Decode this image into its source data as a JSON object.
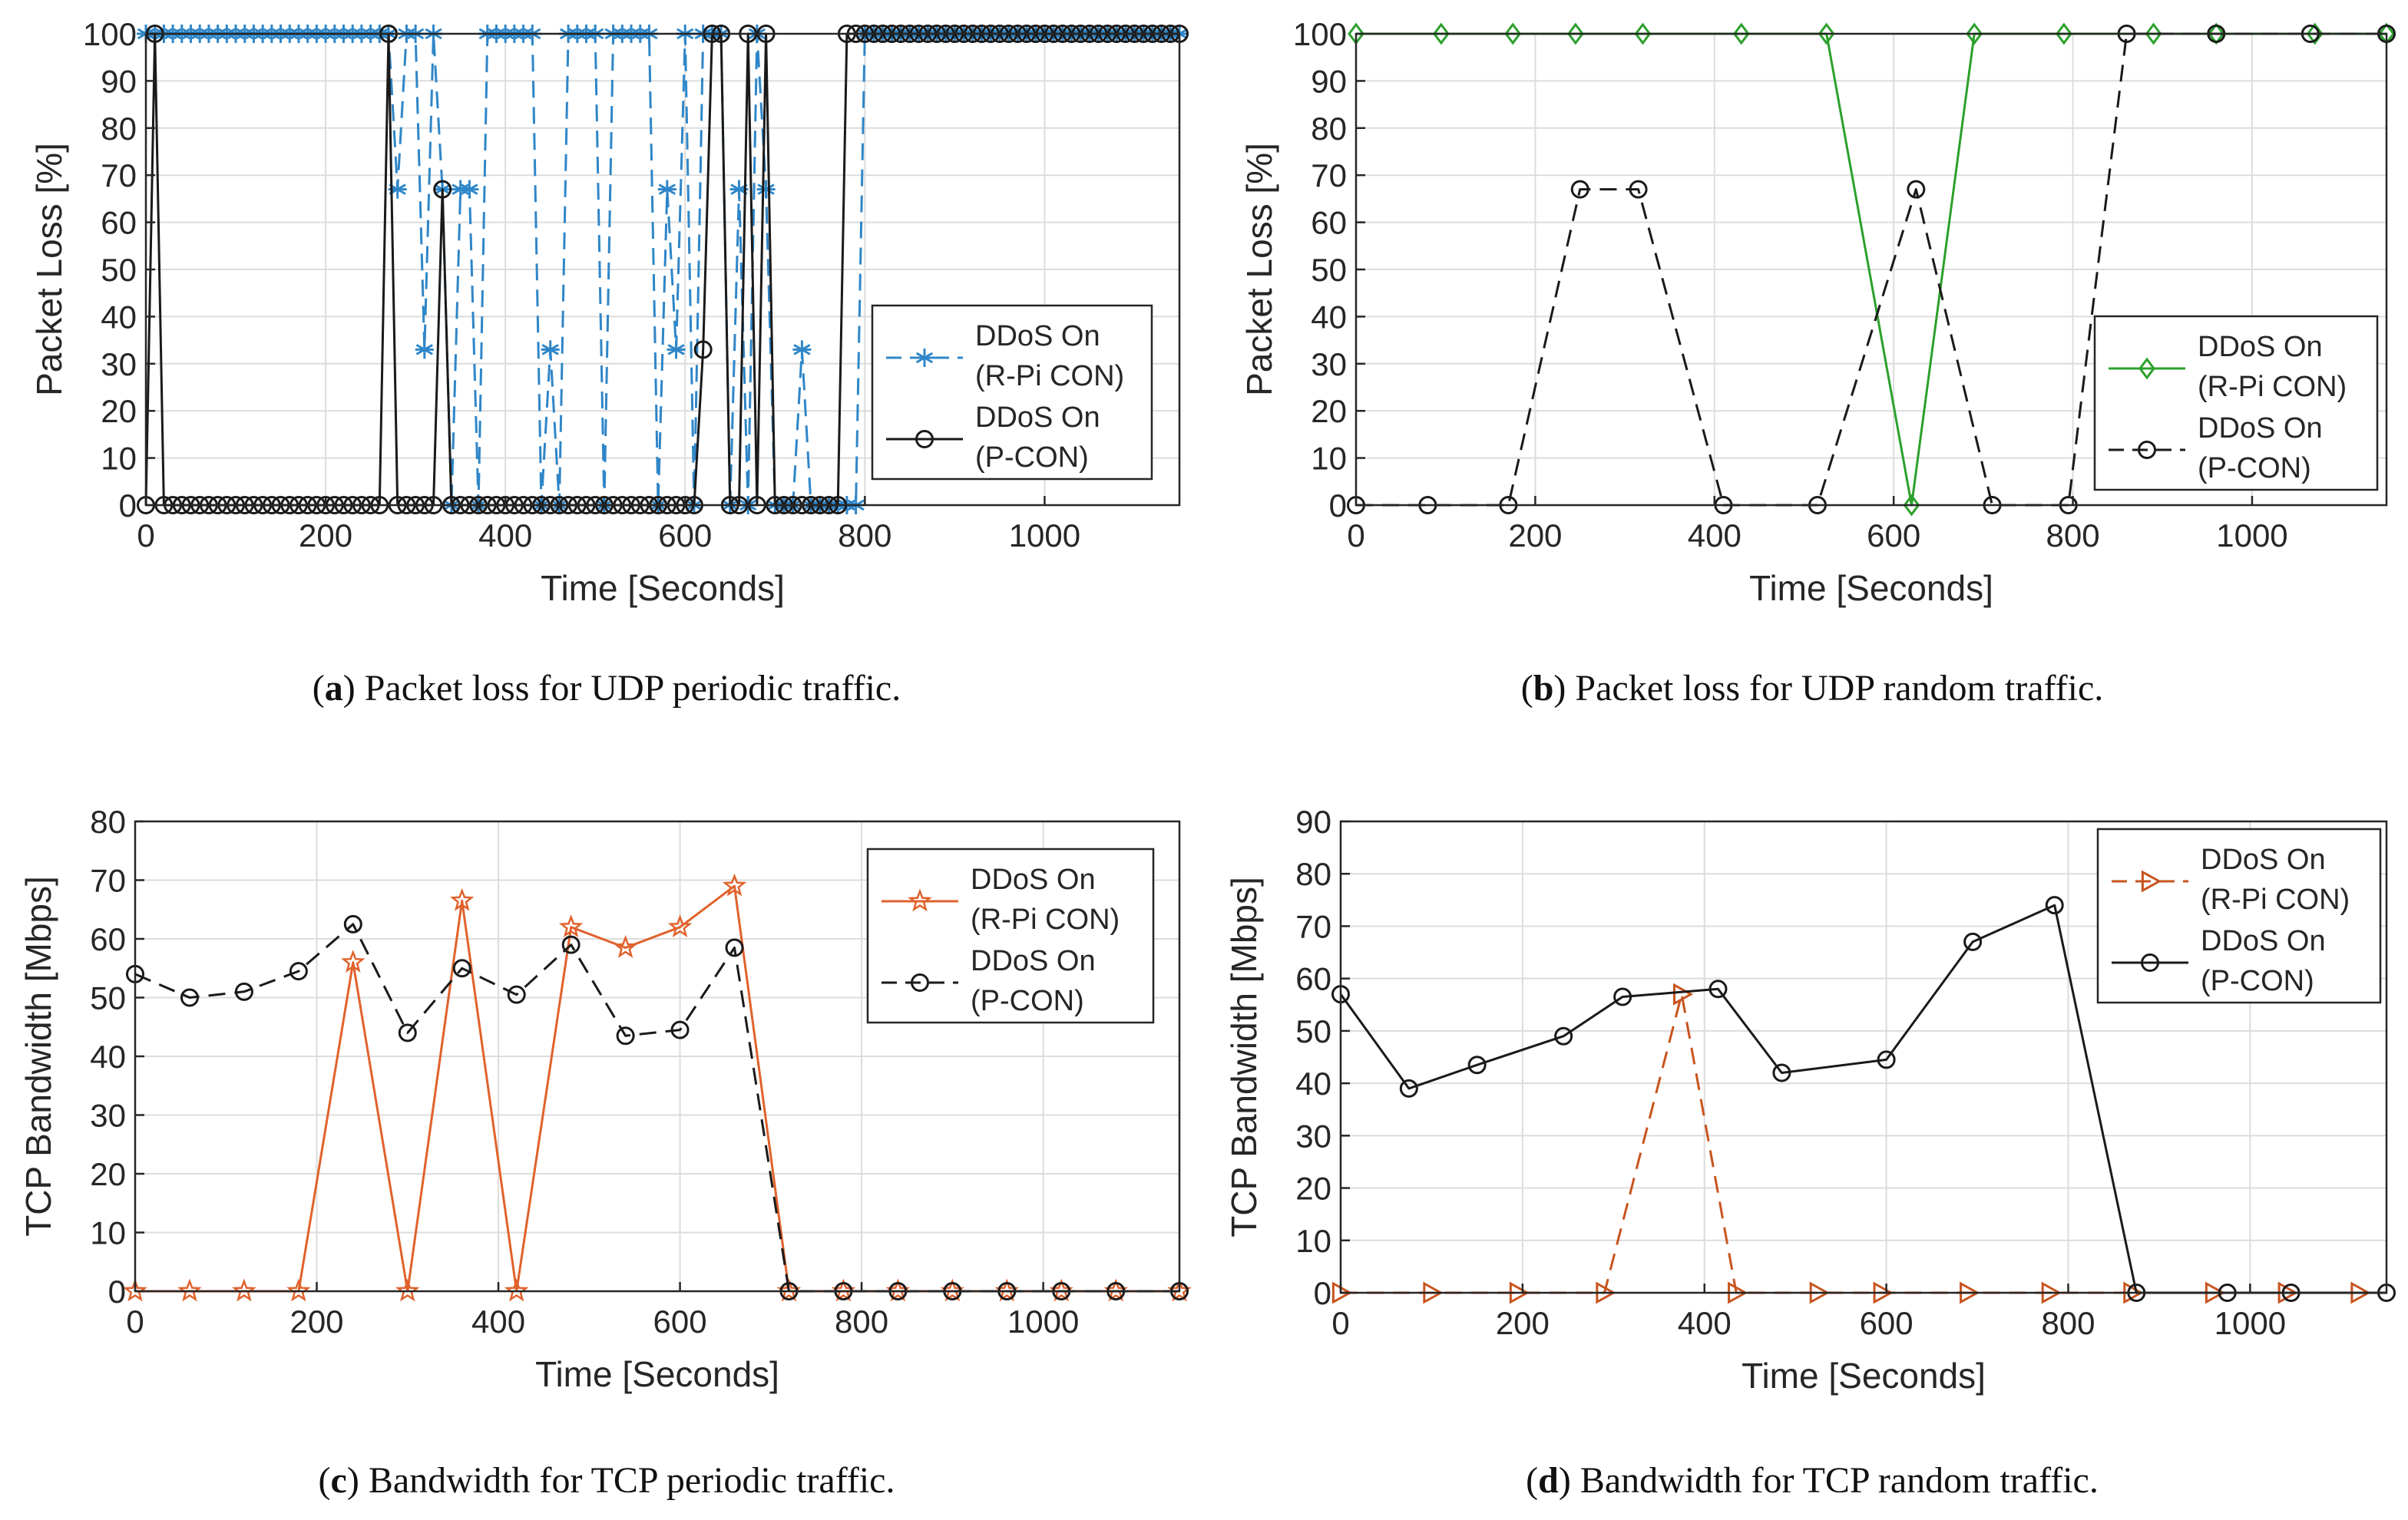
{
  "chart_data": [
    {
      "id": "a",
      "type": "line",
      "caption_label": "a",
      "caption_text": "Packet loss for UDP periodic traffic.",
      "xlabel": "Time [Seconds]",
      "ylabel": "Packet Loss [%]",
      "xlim": [
        0,
        1150
      ],
      "ylim": [
        0,
        100
      ],
      "xticks": [
        0,
        200,
        400,
        600,
        800,
        1000
      ],
      "yticks": [
        0,
        10,
        20,
        30,
        40,
        50,
        60,
        70,
        80,
        90,
        100
      ],
      "legend_position": "center-right",
      "series": [
        {
          "name": "DDoS On (R-Pi CON)",
          "legend_lines": [
            "DDoS On",
            "(R-Pi CON)"
          ],
          "color": "#2f86c8",
          "dash": "dashed",
          "marker": "asterisk",
          "x": [
            0,
            10,
            20,
            30,
            40,
            50,
            60,
            70,
            80,
            90,
            100,
            110,
            120,
            130,
            140,
            150,
            160,
            170,
            180,
            190,
            200,
            210,
            220,
            230,
            240,
            250,
            260,
            270,
            280,
            290,
            300,
            310,
            320,
            330,
            340,
            350,
            360,
            370,
            380,
            390,
            400,
            410,
            420,
            430,
            440,
            450,
            460,
            470,
            480,
            490,
            500,
            510,
            520,
            530,
            540,
            550,
            560,
            570,
            580,
            590,
            600,
            610,
            620,
            630,
            640,
            650,
            660,
            670,
            680,
            690,
            700,
            710,
            720,
            730,
            740,
            750,
            760,
            770,
            780,
            790,
            800,
            810,
            820,
            830,
            840,
            850,
            860,
            870,
            880,
            890,
            900,
            910,
            920,
            930,
            940,
            950,
            960,
            970,
            980,
            990,
            1000,
            1010,
            1020,
            1030,
            1040,
            1050,
            1060,
            1070,
            1080,
            1090,
            1100,
            1110,
            1120,
            1130,
            1140,
            1150
          ],
          "y": [
            100,
            100,
            100,
            100,
            100,
            100,
            100,
            100,
            100,
            100,
            100,
            100,
            100,
            100,
            100,
            100,
            100,
            100,
            100,
            100,
            100,
            100,
            100,
            100,
            100,
            100,
            100,
            100,
            67,
            100,
            100,
            33,
            100,
            67,
            0,
            67,
            67,
            0,
            100,
            100,
            100,
            100,
            100,
            100,
            0,
            33,
            0,
            100,
            100,
            100,
            100,
            0,
            100,
            100,
            100,
            100,
            100,
            0,
            67,
            33,
            100,
            0,
            100,
            100,
            100,
            0,
            67,
            0,
            100,
            67,
            0,
            0,
            0,
            33,
            0,
            0,
            0,
            0,
            0,
            0,
            100,
            100,
            100,
            100,
            100,
            100,
            100,
            100,
            100,
            100,
            100,
            100,
            100,
            100,
            100,
            100,
            100,
            100,
            100,
            100,
            100,
            100,
            100,
            100,
            100,
            100,
            100,
            100,
            100,
            100,
            100,
            100,
            100,
            100,
            100,
            100
          ]
        },
        {
          "name": "DDoS On (P-CON)",
          "legend_lines": [
            "DDoS On",
            "(P-CON)"
          ],
          "color": "#1a1a1a",
          "dash": "solid",
          "marker": "circle",
          "x": [
            0,
            10,
            20,
            30,
            40,
            50,
            60,
            70,
            80,
            90,
            100,
            110,
            120,
            130,
            140,
            150,
            160,
            170,
            180,
            190,
            200,
            210,
            220,
            230,
            240,
            250,
            260,
            270,
            280,
            290,
            300,
            310,
            320,
            330,
            340,
            350,
            360,
            370,
            380,
            390,
            400,
            410,
            420,
            430,
            440,
            450,
            460,
            470,
            480,
            490,
            500,
            510,
            520,
            530,
            540,
            550,
            560,
            570,
            580,
            590,
            600,
            610,
            620,
            630,
            640,
            650,
            660,
            670,
            680,
            690,
            700,
            710,
            720,
            730,
            740,
            750,
            760,
            770,
            780,
            790,
            800,
            810,
            820,
            830,
            840,
            850,
            860,
            870,
            880,
            890,
            900,
            910,
            920,
            930,
            940,
            950,
            960,
            970,
            980,
            990,
            1000,
            1010,
            1020,
            1030,
            1040,
            1050,
            1060,
            1070,
            1080,
            1090,
            1100,
            1110,
            1120,
            1130,
            1140,
            1150
          ],
          "y": [
            0,
            100,
            0,
            0,
            0,
            0,
            0,
            0,
            0,
            0,
            0,
            0,
            0,
            0,
            0,
            0,
            0,
            0,
            0,
            0,
            0,
            0,
            0,
            0,
            0,
            0,
            0,
            100,
            0,
            0,
            0,
            0,
            0,
            67,
            0,
            0,
            0,
            0,
            0,
            0,
            0,
            0,
            0,
            0,
            0,
            0,
            0,
            0,
            0,
            0,
            0,
            0,
            0,
            0,
            0,
            0,
            0,
            0,
            0,
            0,
            0,
            0,
            33,
            100,
            100,
            0,
            0,
            100,
            0,
            100,
            0,
            0,
            0,
            0,
            0,
            0,
            0,
            0,
            100,
            100,
            100,
            100,
            100,
            100,
            100,
            100,
            100,
            100,
            100,
            100,
            100,
            100,
            100,
            100,
            100,
            100,
            100,
            100,
            100,
            100,
            100,
            100,
            100,
            100,
            100,
            100,
            100,
            100,
            100,
            100,
            100,
            100,
            100,
            100,
            100,
            100
          ]
        }
      ]
    },
    {
      "id": "b",
      "type": "line",
      "caption_label": "b",
      "caption_text": "Packet loss for UDP random traffic.",
      "xlabel": "Time [Seconds]",
      "ylabel": "Packet Loss [%]",
      "xlim": [
        0,
        1150
      ],
      "ylim": [
        0,
        100
      ],
      "xticks": [
        0,
        200,
        400,
        600,
        800,
        1000
      ],
      "yticks": [
        0,
        10,
        20,
        30,
        40,
        50,
        60,
        70,
        80,
        90,
        100
      ],
      "legend_position": "center-right",
      "series": [
        {
          "name": "DDoS On (R-Pi CON)",
          "legend_lines": [
            "DDoS On",
            "(R-Pi CON)"
          ],
          "color": "#2ca02c",
          "dash": "solid",
          "marker": "diamond",
          "x": [
            0,
            95,
            175,
            245,
            320,
            430,
            525,
            620,
            690,
            790,
            890,
            960,
            1070,
            1150
          ],
          "y": [
            100,
            100,
            100,
            100,
            100,
            100,
            100,
            0,
            100,
            100,
            100,
            100,
            100,
            100
          ]
        },
        {
          "name": "DDoS On (P-CON)",
          "legend_lines": [
            "DDoS On",
            "(P-CON)"
          ],
          "color": "#1a1a1a",
          "dash": "dashed",
          "marker": "circle",
          "x": [
            0,
            80,
            170,
            250,
            315,
            410,
            515,
            625,
            710,
            795,
            860,
            960,
            1065,
            1150
          ],
          "y": [
            0,
            0,
            0,
            67,
            67,
            0,
            0,
            67,
            0,
            0,
            100,
            100,
            100,
            100
          ]
        }
      ]
    },
    {
      "id": "c",
      "type": "line",
      "caption_label": "c",
      "caption_text": "Bandwidth for TCP periodic traffic.",
      "xlabel": "Time [Seconds]",
      "ylabel": "TCP Bandwidth [Mbps]",
      "xlim": [
        0,
        1150
      ],
      "ylim": [
        0,
        80
      ],
      "xticks": [
        0,
        200,
        400,
        600,
        800,
        1000
      ],
      "yticks": [
        0,
        10,
        20,
        30,
        40,
        50,
        60,
        70,
        80
      ],
      "legend_position": "top-right",
      "series": [
        {
          "name": "DDoS On (R-Pi CON)",
          "legend_lines": [
            "DDoS On",
            "(R-Pi CON)"
          ],
          "color": "#e0622c",
          "dash": "solid",
          "marker": "pentagram",
          "x": [
            0,
            60,
            120,
            180,
            240,
            300,
            360,
            420,
            480,
            540,
            600,
            660,
            720,
            780,
            840,
            900,
            960,
            1020,
            1080,
            1150
          ],
          "y": [
            0,
            0,
            0,
            0,
            56,
            0,
            66.5,
            0,
            62,
            58.5,
            62,
            69,
            0,
            0,
            0,
            0,
            0,
            0,
            0,
            0
          ]
        },
        {
          "name": "DDoS On (P-CON)",
          "legend_lines": [
            "DDoS On",
            "(P-CON)"
          ],
          "color": "#1a1a1a",
          "dash": "dashed",
          "marker": "circle",
          "x": [
            0,
            60,
            120,
            180,
            240,
            300,
            360,
            420,
            480,
            540,
            600,
            660,
            720,
            780,
            840,
            900,
            960,
            1020,
            1080,
            1150
          ],
          "y": [
            54,
            50,
            51,
            54.5,
            62.5,
            44,
            55,
            50.5,
            59,
            43.5,
            44.5,
            58.5,
            0,
            0,
            0,
            0,
            0,
            0,
            0,
            0
          ]
        }
      ]
    },
    {
      "id": "d",
      "type": "line",
      "caption_label": "d",
      "caption_text": "Bandwidth for TCP random traffic.",
      "xlabel": "Time [Seconds]",
      "ylabel": "TCP Bandwidth [Mbps]",
      "xlim": [
        0,
        1150
      ],
      "ylim": [
        0,
        90
      ],
      "xticks": [
        0,
        200,
        400,
        600,
        800,
        1000
      ],
      "yticks": [
        0,
        10,
        20,
        30,
        40,
        50,
        60,
        70,
        80,
        90
      ],
      "legend_position": "top-right",
      "series": [
        {
          "name": "DDoS On (R-Pi CON)",
          "legend_lines": [
            "DDoS On",
            "(R-Pi CON)"
          ],
          "color": "#c8541e",
          "dash": "dashed",
          "marker": "triangle-right",
          "x": [
            0,
            100,
            195,
            290,
            375,
            435,
            525,
            595,
            690,
            780,
            870,
            960,
            1040,
            1120
          ],
          "y": [
            0,
            0,
            0,
            0,
            57,
            0,
            0,
            0,
            0,
            0,
            0,
            0,
            0,
            0
          ]
        },
        {
          "name": "DDoS On (P-CON)",
          "legend_lines": [
            "DDoS On",
            "(P-CON)"
          ],
          "color": "#1a1a1a",
          "dash": "solid",
          "marker": "circle",
          "x": [
            0,
            75,
            150,
            245,
            310,
            415,
            485,
            600,
            695,
            785,
            875,
            975,
            1045,
            1150
          ],
          "y": [
            57,
            39,
            43.5,
            49,
            56.5,
            58,
            42,
            44.5,
            67,
            74,
            0,
            0,
            0,
            0
          ]
        }
      ]
    }
  ]
}
